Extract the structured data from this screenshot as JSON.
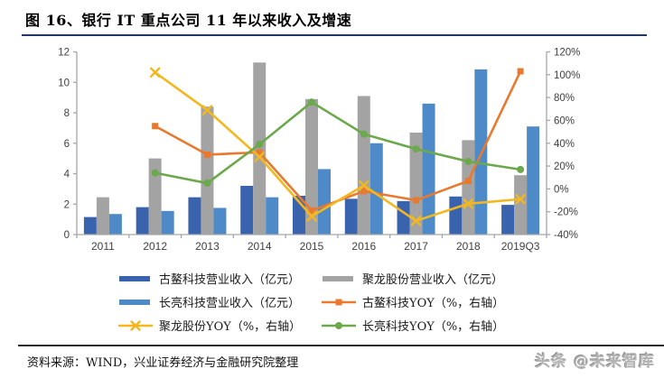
{
  "title": "图 16、银行 IT 重点公司 11 年以来收入及增速",
  "footer": {
    "source": "资料来源：WIND，兴业证券经济与金融研究院整理",
    "watermark": "头条 @未来智库"
  },
  "colors": {
    "title_rule": "#1F3864",
    "axis": "#A6A6A6",
    "axis_text": "#404040",
    "guao_bar": "#3A63AE",
    "julong_bar": "#A3A3A3",
    "sunline_bar": "#4E8AC8",
    "guao_line": "#E8792F",
    "julong_line": "#F3B71F",
    "sunline_line": "#6CA84C"
  },
  "chart_data": {
    "type": "bar",
    "subtype": "grouped bars + lines, dual y-axis",
    "title": "图 16、银行 IT 重点公司 11 年以来收入及增速",
    "categories": [
      "2011",
      "2012",
      "2013",
      "2014",
      "2015",
      "2016",
      "2017",
      "2018",
      "2019Q3"
    ],
    "bar_series": [
      {
        "name": "古鳌科技营业收入（亿元）",
        "axis": "left",
        "color": "#3A63AE",
        "values": [
          1.15,
          1.8,
          2.45,
          3.2,
          2.55,
          2.35,
          2.2,
          2.5,
          1.95
        ]
      },
      {
        "name": "聚龙股份营业收入（亿元）",
        "axis": "left",
        "color": "#A3A3A3",
        "values": [
          2.45,
          5.0,
          8.4,
          11.3,
          8.9,
          9.1,
          6.7,
          6.2,
          3.9
        ]
      },
      {
        "name": "长亮科技营业收入（亿元）",
        "axis": "left",
        "color": "#4E8AC8",
        "values": [
          1.35,
          1.55,
          1.75,
          2.45,
          4.3,
          6.0,
          8.6,
          10.85,
          7.1
        ]
      }
    ],
    "line_series": [
      {
        "name": "古鳌科技YOY（%，右轴）",
        "axis": "right",
        "color": "#E8792F",
        "marker": "square",
        "values": [
          null,
          55,
          30,
          32,
          -19,
          -2,
          -10,
          7,
          103
        ]
      },
      {
        "name": "聚龙股份YOY（%，右轴）",
        "axis": "right",
        "color": "#F3B71F",
        "marker": "x",
        "values": [
          null,
          102,
          69,
          28,
          -24,
          3,
          -28,
          -13,
          -9
        ]
      },
      {
        "name": "长亮科技YOY（%，右轴）",
        "axis": "right",
        "color": "#6CA84C",
        "marker": "circle",
        "values": [
          null,
          14,
          5,
          39,
          76,
          48,
          35,
          24,
          17
        ]
      }
    ],
    "left_axis": {
      "min": 0,
      "max": 12,
      "ticks": [
        0,
        2,
        4,
        6,
        8,
        10,
        12
      ],
      "unit": "亿元"
    },
    "right_axis": {
      "min": -40,
      "max": 120,
      "ticks": [
        "-40%",
        "-20%",
        "0%",
        "20%",
        "40%",
        "60%",
        "80%",
        "100%",
        "120%"
      ],
      "unit": "%"
    },
    "grid": false,
    "legend_position": "bottom"
  }
}
